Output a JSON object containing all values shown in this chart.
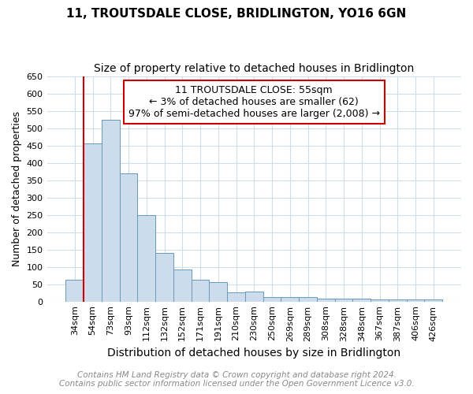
{
  "title": "11, TROUTSDALE CLOSE, BRIDLINGTON, YO16 6GN",
  "subtitle": "Size of property relative to detached houses in Bridlington",
  "xlabel": "Distribution of detached houses by size in Bridlington",
  "ylabel": "Number of detached properties",
  "categories": [
    "34sqm",
    "54sqm",
    "73sqm",
    "93sqm",
    "112sqm",
    "132sqm",
    "152sqm",
    "171sqm",
    "191sqm",
    "210sqm",
    "230sqm",
    "250sqm",
    "269sqm",
    "289sqm",
    "308sqm",
    "328sqm",
    "348sqm",
    "367sqm",
    "387sqm",
    "406sqm",
    "426sqm"
  ],
  "values": [
    62,
    455,
    525,
    370,
    250,
    140,
    93,
    62,
    55,
    27,
    28,
    12,
    13,
    13,
    8,
    8,
    8,
    6,
    6,
    6,
    5
  ],
  "bar_color": "#ccdcec",
  "bar_edge_color": "#6699bb",
  "vline_x": 0.5,
  "vline_color": "#cc0000",
  "annotation_line1": "11 TROUTSDALE CLOSE: 55sqm",
  "annotation_line2": "← 3% of detached houses are smaller (62)",
  "annotation_line3": "97% of semi-detached houses are larger (2,008) →",
  "annotation_box_color": "#ffffff",
  "annotation_box_edge": "#cc0000",
  "ylim": [
    0,
    650
  ],
  "yticks": [
    0,
    50,
    100,
    150,
    200,
    250,
    300,
    350,
    400,
    450,
    500,
    550,
    600,
    650
  ],
  "footnote1": "Contains HM Land Registry data © Crown copyright and database right 2024.",
  "footnote2": "Contains public sector information licensed under the Open Government Licence v3.0.",
  "bg_color": "#ffffff",
  "plot_bg_color": "#ffffff",
  "grid_color": "#d0dce8",
  "title_fontsize": 11,
  "subtitle_fontsize": 10,
  "xlabel_fontsize": 10,
  "ylabel_fontsize": 9,
  "tick_fontsize": 8,
  "annotation_fontsize": 9,
  "footnote_fontsize": 7.5
}
